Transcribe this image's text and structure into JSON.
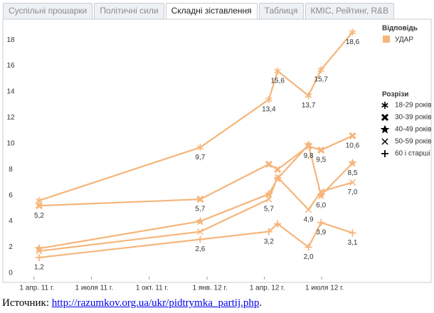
{
  "tabs": [
    "Суспільні прошарки",
    "Політичні сили",
    "Складні зіставлення",
    "Таблиця",
    "КМІС, Рейтинг, R&B"
  ],
  "active_tab": 2,
  "chart_data": {
    "type": "line",
    "color": "#f5b57a",
    "legend_title": "Відповідь",
    "legend_label": "УДАР",
    "series_legend_title": "Розрізи",
    "x": [
      "2011-04-09",
      "2011-12-21",
      "2012-04-08",
      "2012-04-22",
      "2012-06-10",
      "2012-06-30",
      "2012-08-19"
    ],
    "xlim": [
      "2011-02-15",
      "2012-09-27"
    ],
    "xticks": [
      {
        "value": "2011-04-01",
        "label": "1 апр. 11 г."
      },
      {
        "value": "2011-07-01",
        "label": "1 июля 11 г."
      },
      {
        "value": "2011-10-01",
        "label": "1 окт. 11 г."
      },
      {
        "value": "2012-01-01",
        "label": "1 янв. 12 г."
      },
      {
        "value": "2012-04-01",
        "label": "1 апр. 12 г."
      },
      {
        "value": "2012-07-01",
        "label": "1 июля 12 г."
      }
    ],
    "ylim": [
      -0.5,
      19.6
    ],
    "yticks": [
      0,
      2,
      4,
      6,
      8,
      10,
      12,
      14,
      16,
      18
    ],
    "series": [
      {
        "name": "18-29 років",
        "marker": "asterisk",
        "values": [
          5.6,
          9.7,
          13.4,
          15.6,
          13.7,
          15.7,
          18.6
        ],
        "value_labels": [
          null,
          "9,7",
          "13,4",
          "15,6",
          "13,7",
          "15,7",
          "18,6"
        ]
      },
      {
        "name": "30-39 років",
        "marker": "bold-x",
        "values": [
          5.2,
          5.7,
          8.4,
          8.0,
          9.8,
          9.5,
          10.6
        ],
        "value_labels": [
          "5,2",
          "5,7",
          null,
          null,
          "9,8",
          "9,5",
          "10,6"
        ]
      },
      {
        "name": "40-49 років",
        "marker": "star",
        "values": [
          1.9,
          4.0,
          6.1,
          7.3,
          9.9,
          6.0,
          8.5
        ],
        "value_labels": [
          null,
          null,
          null,
          null,
          null,
          "6,0",
          "8,5"
        ]
      },
      {
        "name": "50-59 років",
        "marker": "x",
        "values": [
          1.7,
          3.2,
          5.7,
          7.4,
          4.9,
          6.3,
          7.0
        ],
        "value_labels": [
          null,
          null,
          "5,7",
          null,
          "4,9",
          null,
          "7,0"
        ]
      },
      {
        "name": "60 і старші",
        "marker": "plus",
        "values": [
          1.2,
          2.6,
          3.2,
          3.8,
          2.0,
          3.9,
          3.1
        ],
        "value_labels": [
          "1,2",
          "2,6",
          "3,2",
          null,
          "2,0",
          "3,9",
          "3,1"
        ]
      }
    ]
  },
  "source_label": "Источник:",
  "source_link": "http://razumkov.org.ua/ukr/pidtrymka_partij.php",
  "source_end": "."
}
